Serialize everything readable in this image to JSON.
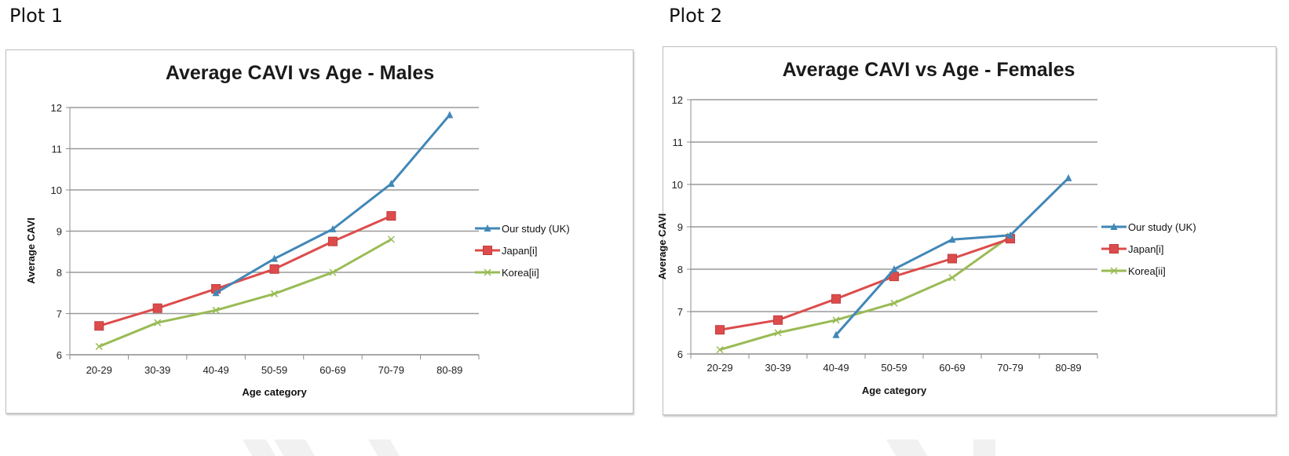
{
  "page": {
    "plot1_label": "Plot 1",
    "plot2_label": "Plot 2"
  },
  "colors": {
    "uk": "#4187b7",
    "japan": "#dd4c4c",
    "korea": "#99bb55",
    "grid": "#9a9a9a",
    "axis": "#8c8c8c"
  },
  "chart_data": [
    {
      "type": "line",
      "title": "Average CAVI vs Age - Males",
      "xlabel": "Age category",
      "ylabel": "Average CAVI",
      "categories": [
        "20-29",
        "30-39",
        "40-49",
        "50-59",
        "60-69",
        "70-79",
        "80-89"
      ],
      "ylim": [
        6,
        12
      ],
      "yticks": [
        6,
        7,
        8,
        9,
        10,
        11,
        12
      ],
      "grid": true,
      "legend_position": "right",
      "series": [
        {
          "name": "Our study (UK)",
          "key": "uk",
          "marker": "triangle",
          "values": [
            null,
            null,
            7.5,
            8.33,
            9.05,
            10.15,
            11.82
          ]
        },
        {
          "name": "Japan[i]",
          "key": "japan",
          "marker": "square",
          "values": [
            6.7,
            7.13,
            7.6,
            8.08,
            8.75,
            9.37,
            null
          ]
        },
        {
          "name": "Korea[ii]",
          "key": "korea",
          "marker": "x",
          "values": [
            6.2,
            6.78,
            7.08,
            7.48,
            8.0,
            8.8,
            null
          ]
        }
      ]
    },
    {
      "type": "line",
      "title": "Average CAVI vs Age - Females",
      "xlabel": "Age category",
      "ylabel": "Average CAVI",
      "categories": [
        "20-29",
        "30-39",
        "40-49",
        "50-59",
        "60-69",
        "70-79",
        "80-89"
      ],
      "ylim": [
        6,
        12
      ],
      "yticks": [
        6,
        7,
        8,
        9,
        10,
        11,
        12
      ],
      "grid": true,
      "legend_position": "right",
      "series": [
        {
          "name": "Our study (UK)",
          "key": "uk",
          "marker": "triangle",
          "values": [
            null,
            null,
            6.45,
            8.0,
            8.7,
            8.8,
            10.15
          ]
        },
        {
          "name": "Japan[i]",
          "key": "japan",
          "marker": "square",
          "values": [
            6.57,
            6.8,
            7.3,
            7.83,
            8.25,
            8.72,
            null
          ]
        },
        {
          "name": "Korea[ii]",
          "key": "korea",
          "marker": "x",
          "values": [
            6.1,
            6.5,
            6.8,
            7.2,
            7.8,
            8.78,
            null
          ]
        }
      ]
    }
  ]
}
